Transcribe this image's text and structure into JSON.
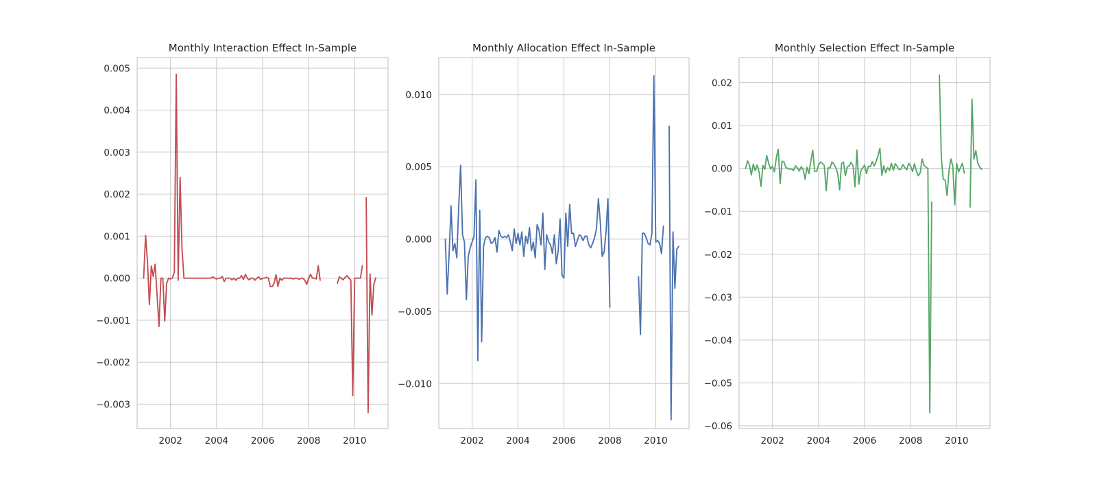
{
  "chart_data": [
    {
      "type": "line",
      "title": "Monthly Interaction Effect In-Sample",
      "color": "#c44e52",
      "xlim": [
        2000.55,
        2011.45
      ],
      "ylim": [
        -0.00358,
        0.00525
      ],
      "x_ticks": [
        2002,
        2004,
        2006,
        2008,
        2010
      ],
      "x_tick_labels": [
        "2002",
        "2004",
        "2006",
        "2008",
        "2010"
      ],
      "y_ticks": [
        -0.003,
        -0.002,
        -0.001,
        0.0,
        0.001,
        0.002,
        0.003,
        0.004,
        0.005
      ],
      "y_tick_labels": [
        "−0.003",
        "−0.002",
        "−0.001",
        "0.000",
        "0.001",
        "0.002",
        "0.003",
        "0.004",
        "0.005"
      ],
      "grid": true,
      "series": [
        {
          "segments": [
            {
              "start": "2000-11",
              "values": [
                0.0,
                0.00102,
                0.0004,
                -0.00063,
                0.00029,
                4e-05,
                0.00033,
                -0.0004,
                -0.00115,
                0.0,
                0.0,
                -0.00102,
                -0.00012,
                0.0,
                -2e-05,
                0.0,
                0.00015,
                0.00485,
                -5e-05,
                0.0024,
                0.0007,
                0.0,
                0.0,
                0.0,
                0.0,
                0.0,
                0.0,
                0.0,
                0.0,
                0.0,
                0.0,
                0.0,
                0.0,
                0.0,
                0.0,
                0.0,
                3e-05,
                0.0,
                -2e-05,
                0.0,
                0.0,
                4e-05,
                -8e-05,
                0.0,
                0.0,
                0.0,
                -4e-05,
                0.0,
                -5e-05,
                0.0,
                0.0,
                6e-05,
                -3e-05,
                9e-05,
                0.0,
                -4e-05,
                0.0,
                0.0,
                -5e-05,
                0.0,
                3e-05,
                -3e-05,
                0.0,
                0.0,
                2e-05,
                0.0,
                -0.0002,
                -0.0002,
                -0.00012,
                8e-05,
                -0.0002,
                0.0,
                -5e-05,
                0.0,
                0.0,
                0.0,
                0.0,
                0.0,
                -2e-05,
                0.0,
                0.0,
                -3e-05,
                0.0,
                0.0,
                -5e-05,
                -0.00015,
                0.0,
                9e-05,
                0.0,
                0.0,
                -2e-05,
                0.0003,
                -5e-05
              ]
            },
            {
              "start": "2009-04",
              "values": [
                -0.00012,
                3e-05,
                0.0,
                -4e-05,
                2e-05,
                6e-05,
                0.0,
                -5e-05,
                -0.0028,
                0.0,
                0.0,
                0.0,
                0.0,
                0.0003
              ]
            },
            {
              "start": "2010-07",
              "values": [
                0.00192,
                -0.0032,
                0.0001,
                -0.00088,
                -0.00015,
                1e-05
              ]
            }
          ]
        }
      ]
    },
    {
      "type": "line",
      "title": "Monthly Allocation Effect In-Sample",
      "color": "#4c72b0",
      "xlim": [
        2000.55,
        2011.45
      ],
      "ylim": [
        -0.0131,
        0.01255
      ],
      "x_ticks": [
        2002,
        2004,
        2006,
        2008,
        2010
      ],
      "x_tick_labels": [
        "2002",
        "2004",
        "2006",
        "2008",
        "2010"
      ],
      "y_ticks": [
        -0.01,
        -0.005,
        0.0,
        0.005,
        0.01
      ],
      "y_tick_labels": [
        "−0.010",
        "−0.005",
        "0.000",
        "0.005",
        "0.010"
      ],
      "grid": true,
      "series": [
        {
          "segments": [
            {
              "start": "2000-11",
              "values": [
                0.0,
                -0.0038,
                -0.001,
                0.0023,
                -0.0008,
                -0.0003,
                -0.0013,
                0.0022,
                0.0051,
                0.0003,
                -0.0002,
                -0.0042,
                -0.0012,
                -0.0006,
                -0.0002,
                0.0002,
                0.0041,
                -0.0084,
                0.002,
                -0.0071,
                -0.0005,
                0.0001,
                0.0002,
                0.0001,
                -0.0003,
                -0.0002,
                0.0001,
                -0.0009,
                0.0006,
                0.0002,
                0.0001,
                0.0002,
                0.0001,
                0.0003,
                -0.0002,
                -0.0008,
                0.0007,
                -0.0003,
                0.0004,
                -0.0004,
                0.0005,
                -0.0012,
                0.0002,
                -0.0003,
                0.0008,
                -0.0008,
                -0.0002,
                -0.0013,
                0.001,
                0.0006,
                -0.0004,
                0.0018,
                -0.0021,
                0.0003,
                -0.0002,
                -0.0004,
                -0.001,
                0.0003,
                -0.0017,
                -0.0008,
                0.0014,
                -0.0025,
                -0.0027,
                0.0018,
                -0.0005,
                0.0024,
                0.0004,
                0.0004,
                -0.0005,
                -0.0001,
                0.0003,
                0.0002,
                -0.0001,
                0.0002,
                0.0002,
                -0.0004,
                -0.0006,
                -0.0003,
                0.0001,
                0.0007,
                0.0028,
                0.0012,
                -0.0012,
                -0.0009,
                0.0005,
                0.0028,
                -0.0047
              ]
            },
            {
              "start": "2009-04",
              "values": [
                -0.0026,
                -0.0066,
                0.0004,
                0.0004,
                0.0001,
                -0.0003,
                -0.0004,
                0.0004,
                0.0113,
                -0.0002,
                -0.0001,
                -0.0003,
                -0.001,
                0.0009
              ]
            },
            {
              "start": "2010-08",
              "values": [
                0.0078,
                -0.0125,
                0.0005,
                -0.0034,
                -0.0007,
                -0.0005
              ]
            }
          ]
        }
      ]
    },
    {
      "type": "line",
      "title": "Monthly Selection Effect In-Sample",
      "color": "#55a868",
      "xlim": [
        2000.55,
        2011.45
      ],
      "ylim": [
        -0.06065,
        0.02585
      ],
      "x_ticks": [
        2002,
        2004,
        2006,
        2008,
        2010
      ],
      "x_tick_labels": [
        "2002",
        "2004",
        "2006",
        "2008",
        "2010"
      ],
      "y_ticks": [
        -0.06,
        -0.05,
        -0.04,
        -0.03,
        -0.02,
        -0.01,
        0.0,
        0.01,
        0.02
      ],
      "y_tick_labels": [
        "−0.06",
        "−0.05",
        "−0.04",
        "−0.03",
        "−0.02",
        "−0.01",
        "0.00",
        "0.01",
        "0.02"
      ],
      "grid": true,
      "series": [
        {
          "segments": [
            {
              "start": "2000-11",
              "values": [
                0.0,
                0.0018,
                0.0008,
                -0.0015,
                0.001,
                -0.0005,
                0.0008,
                -0.0008,
                -0.0042,
                0.0007,
                -0.0002,
                0.003,
                0.0012,
                -0.0001,
                0.0005,
                -0.0008,
                0.0025,
                0.0045,
                -0.0035,
                0.0017,
                0.0015,
                0.0002,
                0.0,
                -0.0002,
                -0.0001,
                -0.0005,
                0.0006,
                0.0001,
                -0.0006,
                0.0004,
                -0.0003,
                -0.0025,
                0.0003,
                -0.0012,
                0.0017,
                0.0043,
                -0.0007,
                -0.0007,
                0.0008,
                0.0015,
                0.0012,
                0.0007,
                -0.0052,
                0.0002,
                0.0001,
                0.0015,
                0.001,
                0.0002,
                -0.0012,
                -0.005,
                0.0012,
                0.0015,
                -0.0017,
                0.0004,
                0.0006,
                0.0014,
                0.0006,
                -0.0043,
                0.0043,
                -0.0037,
                -0.0006,
                0.0001,
                0.0008,
                -0.0012,
                0.0005,
                0.0004,
                0.0016,
                0.0006,
                0.0015,
                0.003,
                0.0047,
                -0.0016,
                0.0006,
                -0.001,
                0.0002,
                -0.0005,
                0.0012,
                -0.0004,
                0.0011,
                0.0005,
                -0.0003,
                -0.0001,
                0.0009,
                0.0002,
                -0.0003,
                0.0012,
                0.0006,
                -0.0007,
                0.0011,
                -0.0006,
                -0.0017,
                -0.001,
                0.0022,
                0.0007,
                0.0003,
                0.0,
                -0.057,
                -0.0078
              ]
            },
            {
              "start": "2009-04",
              "values": [
                0.0218,
                0.0025,
                -0.0025,
                -0.0027,
                -0.0063,
                -0.0005,
                0.0022,
                0.0005,
                -0.0085,
                0.0012,
                -0.0008,
                0.0002,
                0.0012,
                -0.0011
              ]
            },
            {
              "start": "2010-08",
              "values": [
                -0.009,
                0.0162,
                0.0022,
                0.0042,
                0.0013,
                0.0003,
                -0.0002
              ]
            }
          ]
        }
      ]
    }
  ]
}
